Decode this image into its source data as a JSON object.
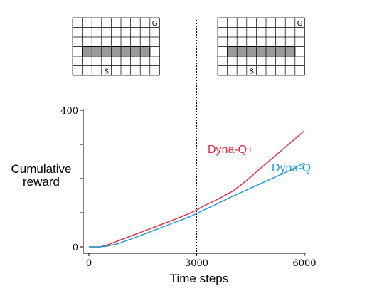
{
  "chart_data": {
    "type": "line",
    "title": "",
    "xlabel": "Time steps",
    "ylabel_lines": [
      "Cumulative",
      "reward"
    ],
    "xlim": [
      0,
      6000
    ],
    "ylim": [
      0,
      400
    ],
    "x_ticks": [
      0,
      3000,
      6000
    ],
    "x_tick_labels": [
      "0",
      "3000",
      "6000"
    ],
    "y_ticks": [
      0,
      400
    ],
    "y_tick_labels": [
      "0",
      "400"
    ],
    "y_minor_ticks": [
      100,
      200,
      300
    ],
    "grid": false,
    "vline_x": 3000,
    "series": [
      {
        "name": "Dyna-Q+",
        "color": "#e8233a",
        "x": [
          0,
          300,
          500,
          800,
          1200,
          1600,
          2000,
          2400,
          2800,
          3000,
          3200,
          3600,
          4000,
          4400,
          4800,
          5200,
          5600,
          6000
        ],
        "y": [
          0,
          0,
          5,
          17,
          33,
          49,
          65,
          81,
          98,
          108,
          120,
          140,
          163,
          195,
          232,
          268,
          304,
          340
        ]
      },
      {
        "name": "Dyna-Q",
        "color": "#1a9ad6",
        "x": [
          0,
          300,
          500,
          800,
          1200,
          1600,
          2000,
          2400,
          2800,
          3000,
          3200,
          3600,
          4000,
          4400,
          4800,
          5200,
          5600,
          6000
        ],
        "y": [
          0,
          0,
          2,
          9,
          24,
          40,
          56,
          72,
          88,
          98,
          108,
          128,
          148,
          167,
          186,
          205,
          224,
          246
        ]
      }
    ],
    "series_labels_position": [
      "inside-upper-right",
      "inside-right"
    ]
  },
  "mazes": [
    {
      "name": "before-change",
      "cols": 9,
      "rows": 6,
      "goal_label": "G",
      "goal_cell": [
        8,
        0
      ],
      "start_label": "S",
      "start_cell": [
        3,
        5
      ],
      "wall_row": 3,
      "wall_from_col": 1,
      "wall_to_col": 8,
      "wall_color": "#9a9a9a"
    },
    {
      "name": "after-change",
      "cols": 9,
      "rows": 6,
      "goal_label": "G",
      "goal_cell": [
        8,
        0
      ],
      "start_label": "S",
      "start_cell": [
        3,
        5
      ],
      "wall_row": 3,
      "wall_from_col": 1,
      "wall_to_col": 8,
      "wall_color": "#9a9a9a"
    }
  ]
}
